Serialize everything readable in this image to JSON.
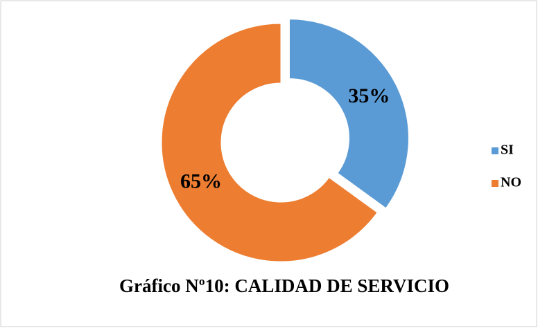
{
  "chart_data": {
    "type": "donut",
    "title": "Gráfico Nº10: CALIDAD DE SERVICIO",
    "categories": [
      "SI",
      "NO"
    ],
    "values": [
      35,
      65
    ],
    "value_labels": [
      "35%",
      "65%"
    ],
    "colors": [
      "#5b9bd5",
      "#ed7d31"
    ],
    "legend": "right"
  }
}
